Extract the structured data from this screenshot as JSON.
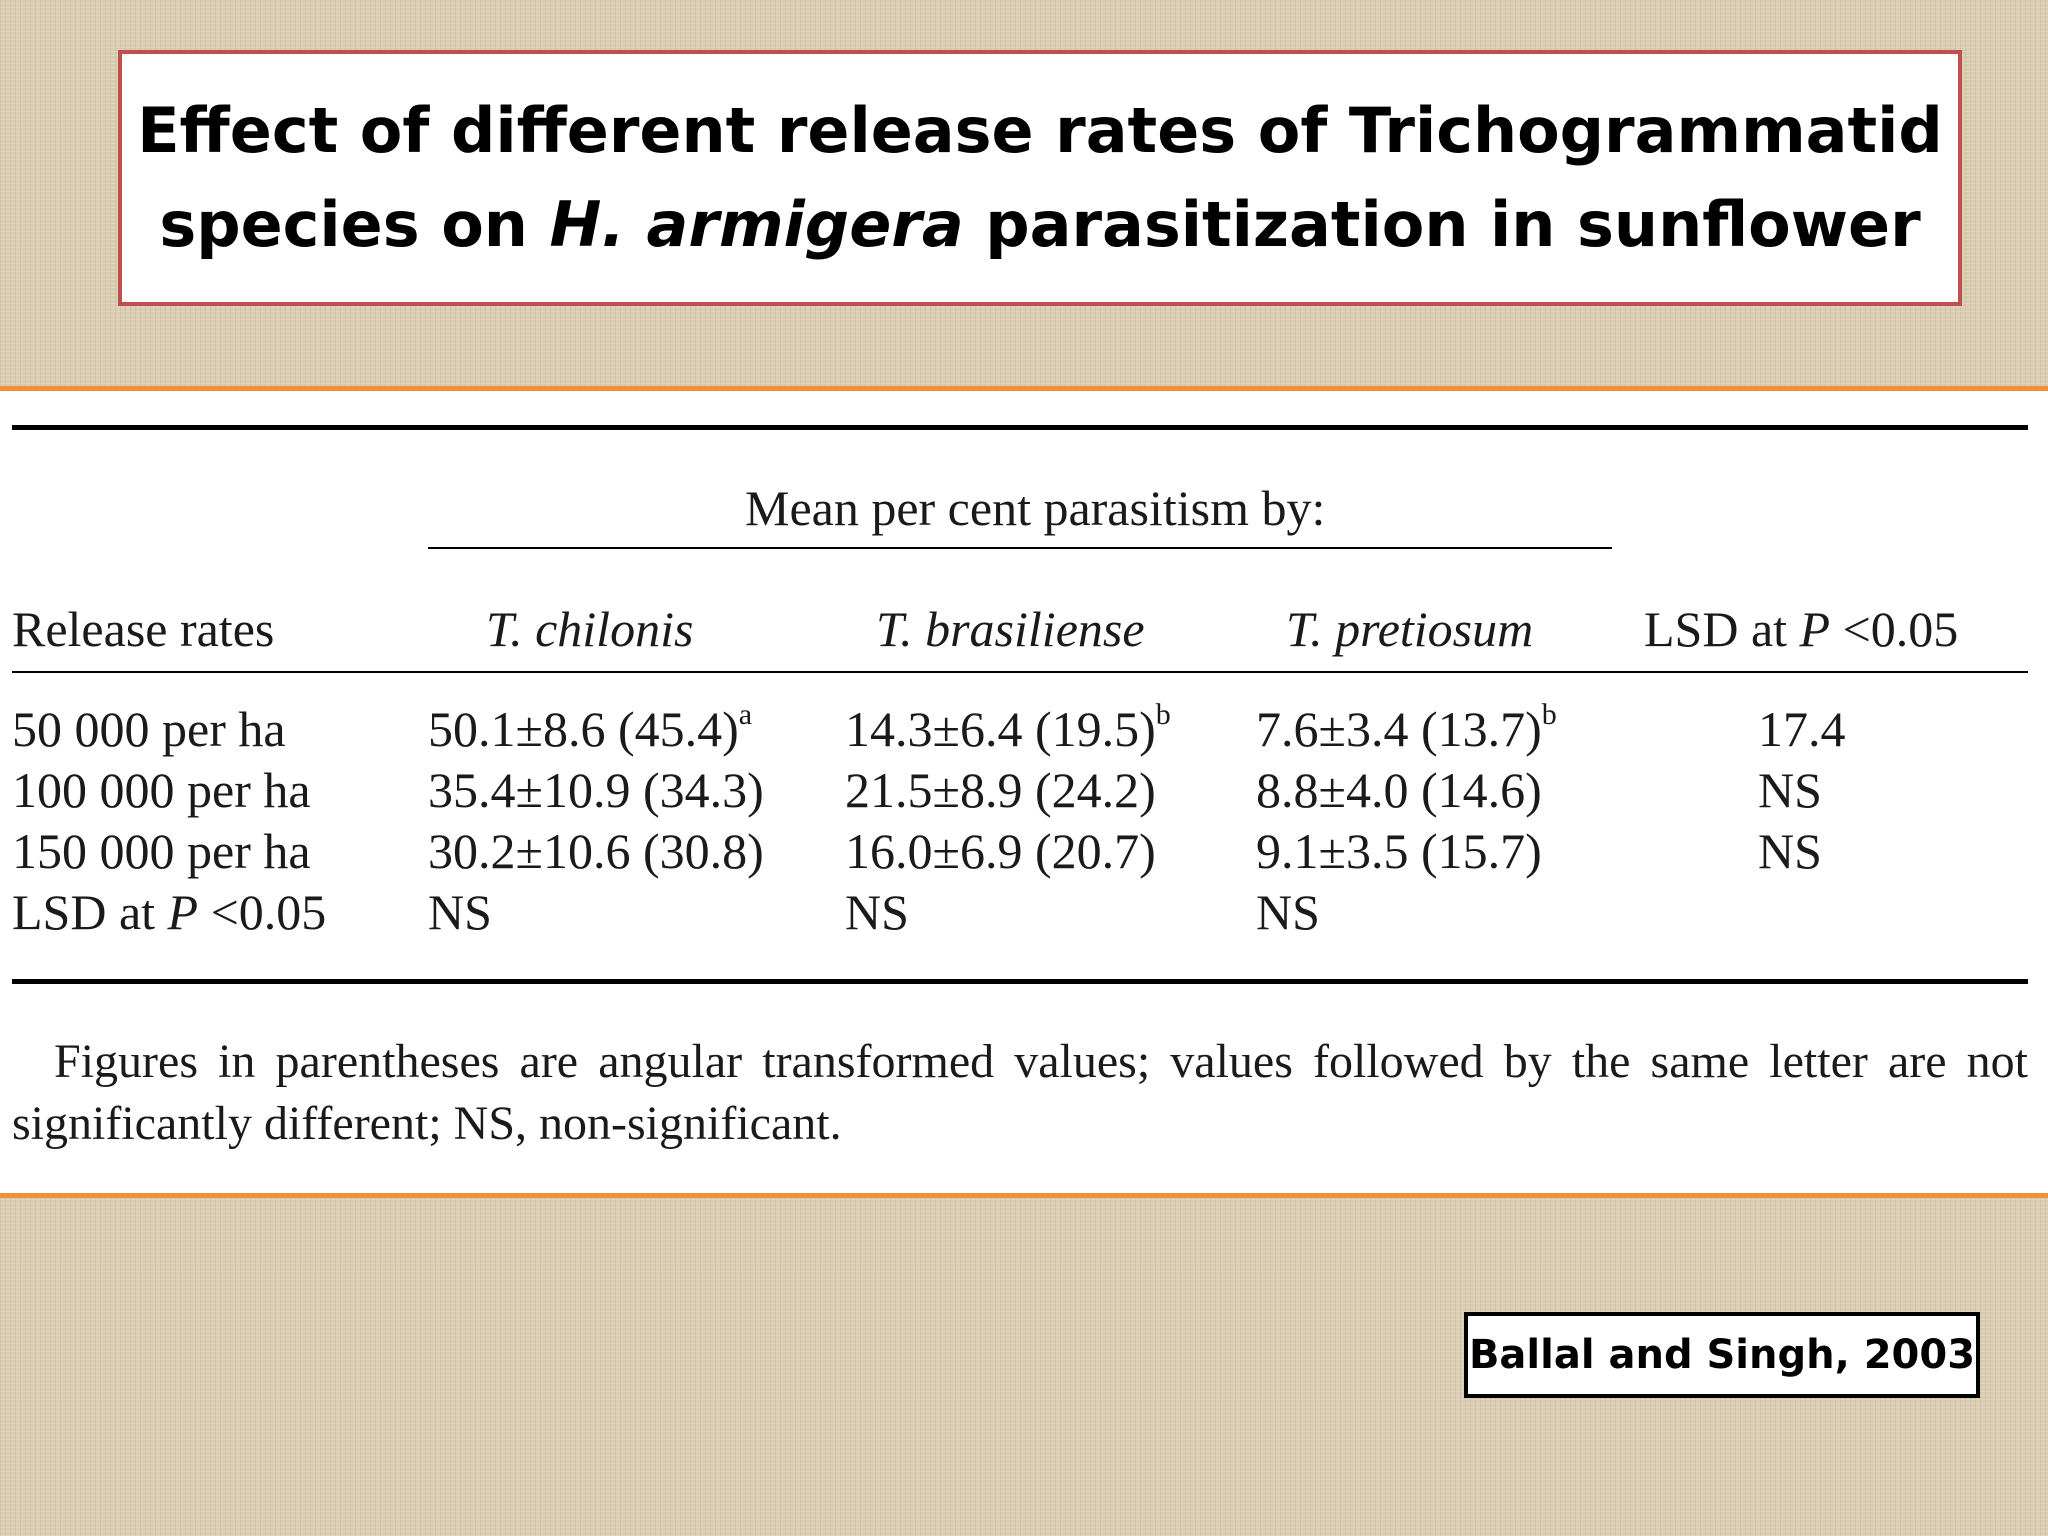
{
  "slide": {
    "title_line1": "Effect of different release rates of Trichogrammatid",
    "title_line2_pre": "species on ",
    "title_line2_italic": "H. armigera",
    "title_line2_post": " parasitization in sunflower",
    "citation": "Ballal and Singh, 2003"
  },
  "table": {
    "group_header": "Mean per cent parasitism by:",
    "col_release": "Release rates",
    "species": [
      "T. chilonis",
      "T. brasiliense",
      "T. pretiosum"
    ],
    "lsd_header_pre": "LSD at ",
    "lsd_header_italic": "P",
    "lsd_header_post": " <0.05",
    "rows": [
      {
        "rate": "50 000 per ha",
        "values": [
          {
            "text": "50.1±8.6 (45.4)",
            "sup": "a"
          },
          {
            "text": "14.3±6.4 (19.5)",
            "sup": "b"
          },
          {
            "text": "7.6±3.4 (13.7)",
            "sup": "b"
          }
        ],
        "lsd": "17.4"
      },
      {
        "rate": "100 000 per ha",
        "values": [
          {
            "text": "35.4±10.9 (34.3)",
            "sup": ""
          },
          {
            "text": "21.5±8.9 (24.2)",
            "sup": ""
          },
          {
            "text": "8.8±4.0 (14.6)",
            "sup": ""
          }
        ],
        "lsd": "NS"
      },
      {
        "rate": "150 000 per ha",
        "values": [
          {
            "text": "30.2±10.6 (30.8)",
            "sup": ""
          },
          {
            "text": "16.0±6.9 (20.7)",
            "sup": ""
          },
          {
            "text": "9.1±3.5 (15.7)",
            "sup": ""
          }
        ],
        "lsd": "NS"
      }
    ],
    "lsd_row_label_pre": "LSD at ",
    "lsd_row_label_italic": "P",
    "lsd_row_label_post": " <0.05",
    "lsd_row_values": [
      "NS",
      "NS",
      "NS"
    ],
    "footnote": "Figures in parentheses are angular transformed values; values followed by the same letter are not significantly different; NS, non-significant."
  }
}
